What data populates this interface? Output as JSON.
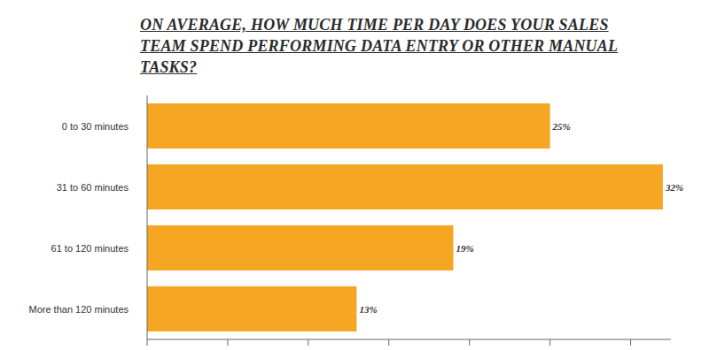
{
  "chart_data": {
    "type": "bar",
    "orientation": "horizontal",
    "title": "ON AVERAGE, HOW MUCH TIME PER DAY DOES YOUR SALES TEAM SPEND PERFORMING DATA ENTRY OR OTHER MANUAL TASKS?",
    "categories": [
      "0 to 30 minutes",
      "31 to 60 minutes",
      "61 to 120 minutes",
      "More than 120 minutes"
    ],
    "values": [
      25,
      32,
      19,
      13
    ],
    "value_labels": [
      "25%",
      "32%",
      "19%",
      "13%"
    ],
    "color": "#f5a623",
    "xlim": [
      0,
      32.5
    ],
    "xticks": [
      0,
      5,
      10,
      15,
      20,
      25,
      30
    ],
    "grid": false,
    "data_labels": true,
    "tick_labels": "y"
  }
}
